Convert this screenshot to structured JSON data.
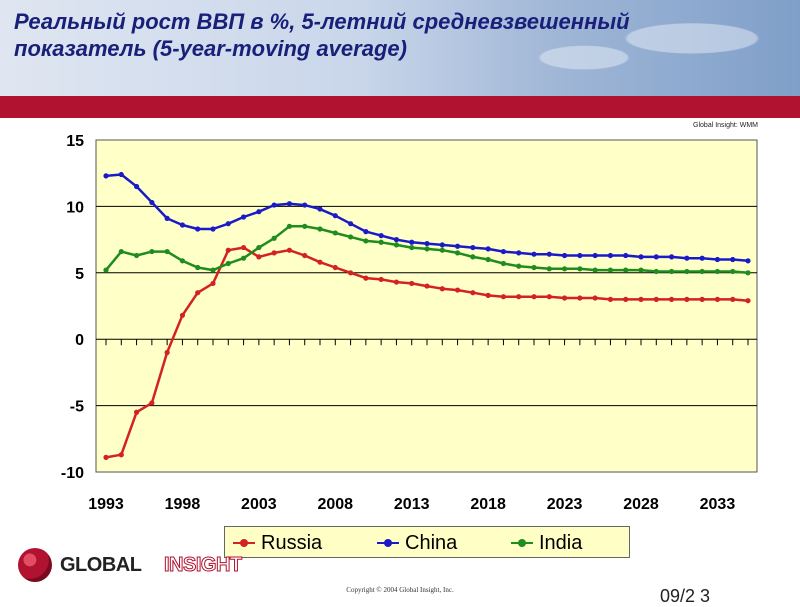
{
  "slide": {
    "title": "Реальный рост ВВП в %, 5-летний средневзвешенный показатель (5-year-moving average)",
    "source": "Global Insight: WMM",
    "logo_left": "GLOBAL",
    "logo_right": "INSIGHT",
    "copyright": "Copyright © 2004 Global Insight, Inc.",
    "slide_number": "09/2          3"
  },
  "colors": {
    "russia": "#d42121",
    "china": "#1a1ac8",
    "india": "#1e8c1e",
    "plot_bg": "#ffffc8",
    "title": "#18207a",
    "band": "#b0122f"
  },
  "chart_data": {
    "type": "line",
    "title": "",
    "xlabel": "",
    "ylabel": "",
    "x": [
      1993,
      1994,
      1995,
      1996,
      1997,
      1998,
      1999,
      2000,
      2001,
      2002,
      2003,
      2004,
      2005,
      2006,
      2007,
      2008,
      2009,
      2010,
      2011,
      2012,
      2013,
      2014,
      2015,
      2016,
      2017,
      2018,
      2019,
      2020,
      2021,
      2022,
      2023,
      2024,
      2025,
      2026,
      2027,
      2028,
      2029,
      2030,
      2031,
      2032,
      2033,
      2034,
      2035
    ],
    "xticks": [
      "1993",
      "1998",
      "2003",
      "2008",
      "2013",
      "2018",
      "2023",
      "2028",
      "2033"
    ],
    "ylim": [
      -10,
      15
    ],
    "yticks": [
      "15",
      "10",
      "5",
      "0",
      "-5",
      "-10"
    ],
    "grid": true,
    "legend_position": "bottom",
    "series": [
      {
        "name": "Russia",
        "color": "#d42121",
        "values": [
          -8.9,
          -8.7,
          -5.5,
          -4.8,
          -1.0,
          1.8,
          3.5,
          4.2,
          6.7,
          6.9,
          6.2,
          6.5,
          6.7,
          6.3,
          5.8,
          5.4,
          5.0,
          4.6,
          4.5,
          4.3,
          4.2,
          4.0,
          3.8,
          3.7,
          3.5,
          3.3,
          3.2,
          3.2,
          3.2,
          3.2,
          3.1,
          3.1,
          3.1,
          3.0,
          3.0,
          3.0,
          3.0,
          3.0,
          3.0,
          3.0,
          3.0,
          3.0,
          2.9
        ]
      },
      {
        "name": "China",
        "color": "#1a1ac8",
        "values": [
          12.3,
          12.4,
          11.5,
          10.3,
          9.1,
          8.6,
          8.3,
          8.3,
          8.7,
          9.2,
          9.6,
          10.1,
          10.2,
          10.1,
          9.8,
          9.3,
          8.7,
          8.1,
          7.8,
          7.5,
          7.3,
          7.2,
          7.1,
          7.0,
          6.9,
          6.8,
          6.6,
          6.5,
          6.4,
          6.4,
          6.3,
          6.3,
          6.3,
          6.3,
          6.3,
          6.2,
          6.2,
          6.2,
          6.1,
          6.1,
          6.0,
          6.0,
          5.9
        ]
      },
      {
        "name": "India",
        "color": "#1e8c1e",
        "values": [
          5.2,
          6.6,
          6.3,
          6.6,
          6.6,
          5.9,
          5.4,
          5.2,
          5.7,
          6.1,
          6.9,
          7.6,
          8.5,
          8.5,
          8.3,
          8.0,
          7.7,
          7.4,
          7.3,
          7.1,
          6.9,
          6.8,
          6.7,
          6.5,
          6.2,
          6.0,
          5.7,
          5.5,
          5.4,
          5.3,
          5.3,
          5.3,
          5.2,
          5.2,
          5.2,
          5.2,
          5.1,
          5.1,
          5.1,
          5.1,
          5.1,
          5.1,
          5.0
        ]
      }
    ]
  }
}
